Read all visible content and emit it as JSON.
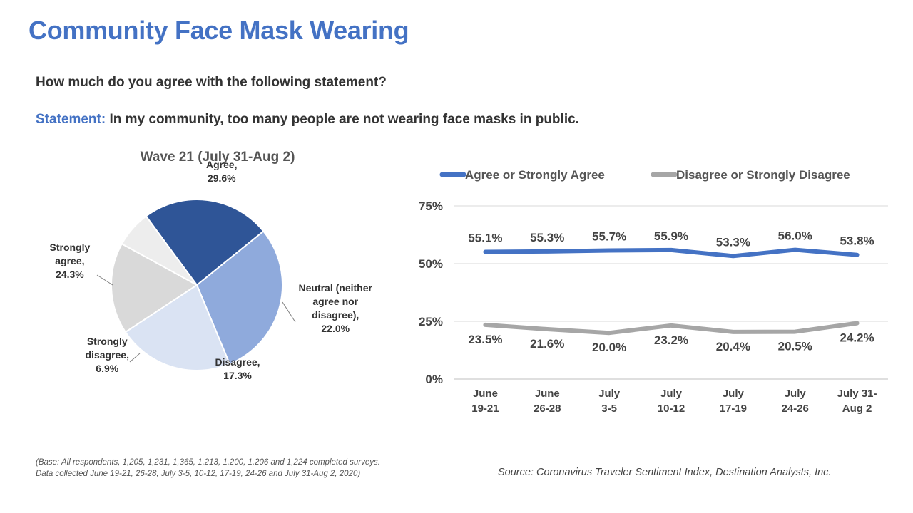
{
  "title": "Community Face Mask Wearing",
  "question": "How much do you agree with the following statement?",
  "statement": {
    "label": "Statement:",
    "text": "In my community, too many people are not wearing face masks in public."
  },
  "footnote": {
    "line1": "(Base: All respondents, 1,205, 1,231, 1,365, 1,213, 1,200, 1,206 and 1,224 completed surveys.",
    "line2": "Data collected June 19-21, 26-28, July 3-5, 10-12, 17-19, 24-26 and July 31-Aug 2, 2020)"
  },
  "source": "Source: Coronavirus Traveler Sentiment Index, Destination Analysts, Inc.",
  "chart_data": [
    {
      "type": "pie",
      "title": "Wave 21 (July 31-Aug 2)",
      "slices": [
        {
          "label_lines": [
            "Agree,",
            "29.6%"
          ],
          "value": 29.6,
          "color": "#8faadc"
        },
        {
          "label_lines": [
            "Neutral (neither",
            "agree nor",
            "disagree),",
            "22.0%"
          ],
          "value": 22.0,
          "color": "#dae3f3"
        },
        {
          "label_lines": [
            "Disagree,",
            "17.3%"
          ],
          "value": 17.3,
          "color": "#d9d9d9"
        },
        {
          "label_lines": [
            "Strongly",
            "disagree,",
            "6.9%"
          ],
          "value": 6.9,
          "color": "#ededed"
        },
        {
          "label_lines": [
            "Strongly",
            "agree,",
            "24.3%"
          ],
          "value": 24.3,
          "color": "#2f5597"
        }
      ]
    },
    {
      "type": "line",
      "categories": [
        [
          "June",
          "19-21"
        ],
        [
          "June",
          "26-28"
        ],
        [
          "July",
          "3-5"
        ],
        [
          "July",
          "10-12"
        ],
        [
          "July",
          "17-19"
        ],
        [
          "July",
          "24-26"
        ],
        [
          "July 31-",
          "Aug 2"
        ]
      ],
      "ylim": [
        0,
        75
      ],
      "yticks": [
        0,
        25,
        50,
        75
      ],
      "ytick_labels": [
        "0%",
        "25%",
        "50%",
        "75%"
      ],
      "grid": true,
      "legend": "top",
      "series": [
        {
          "name": "Agree or Strongly Agree",
          "color": "#4472c4",
          "values": [
            55.1,
            55.3,
            55.7,
            55.9,
            53.3,
            56.0,
            53.8
          ],
          "labels": [
            "55.1%",
            "55.3%",
            "55.7%",
            "55.9%",
            "53.3%",
            "56.0%",
            "53.8%"
          ],
          "label_position": "above"
        },
        {
          "name": "Disagree or Strongly Disagree",
          "color": "#a6a6a6",
          "values": [
            23.5,
            21.6,
            20.0,
            23.2,
            20.4,
            20.5,
            24.2
          ],
          "labels": [
            "23.5%",
            "21.6%",
            "20.0%",
            "23.2%",
            "20.4%",
            "20.5%",
            "24.2%"
          ],
          "label_position": "below"
        }
      ]
    }
  ]
}
